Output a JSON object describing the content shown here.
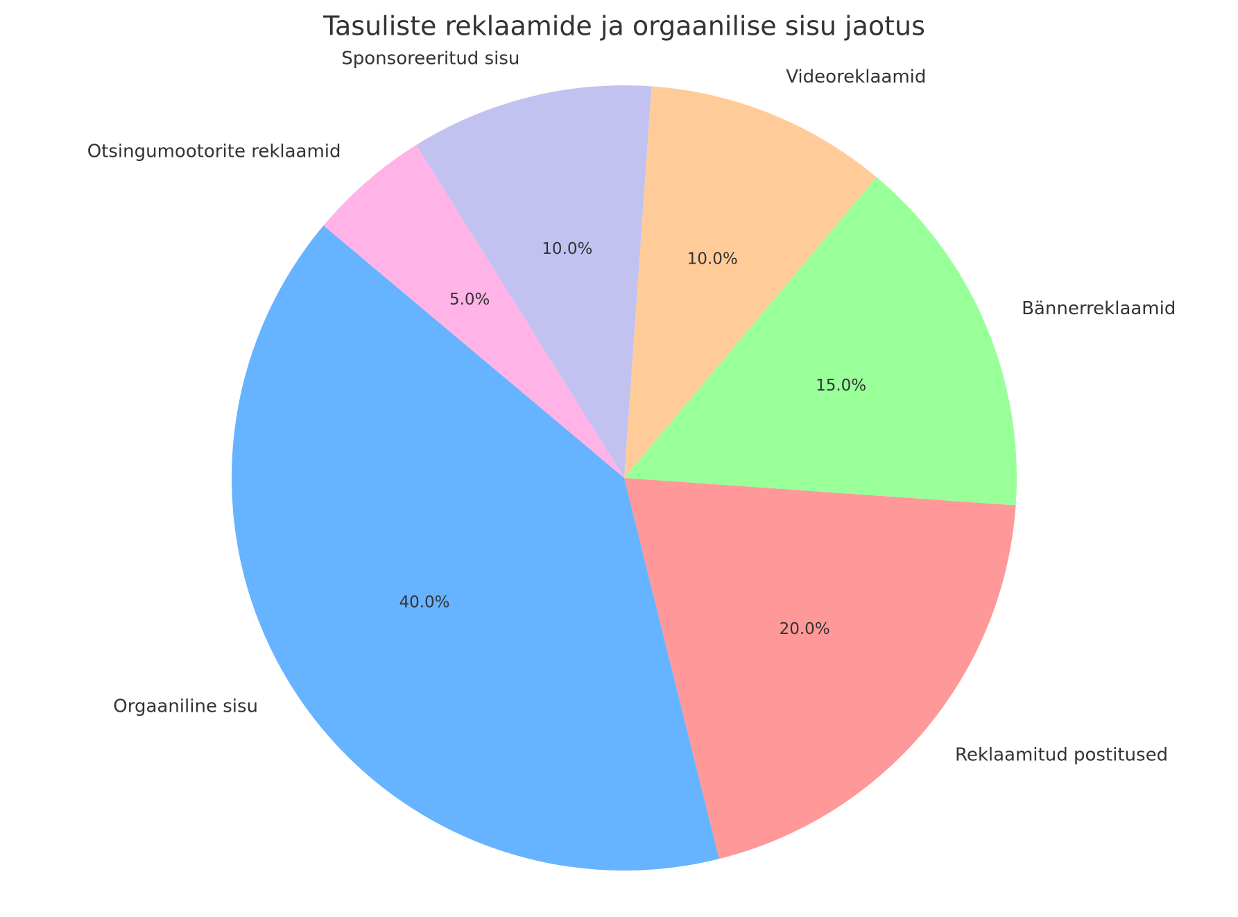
{
  "chart_data": {
    "type": "pie",
    "title": "Tasuliste reklaamide ja orgaanilise sisu jaotus",
    "categories": [
      "Orgaaniline sisu",
      "Reklaamitud postitused",
      "Bännerreklaamid",
      "Videoreklaamid",
      "Sponsoreeritud sisu",
      "Otsingumootorite reklaamid"
    ],
    "values": [
      40,
      20,
      15,
      10,
      10,
      5
    ],
    "value_labels": [
      "40.0%",
      "20.0%",
      "15.0%",
      "10.0%",
      "10.0%",
      "5.0%"
    ],
    "colors": [
      "#66b3ff",
      "#ff9999",
      "#99ff99",
      "#ffcc99",
      "#c2c2f0",
      "#ffb3e6"
    ]
  }
}
